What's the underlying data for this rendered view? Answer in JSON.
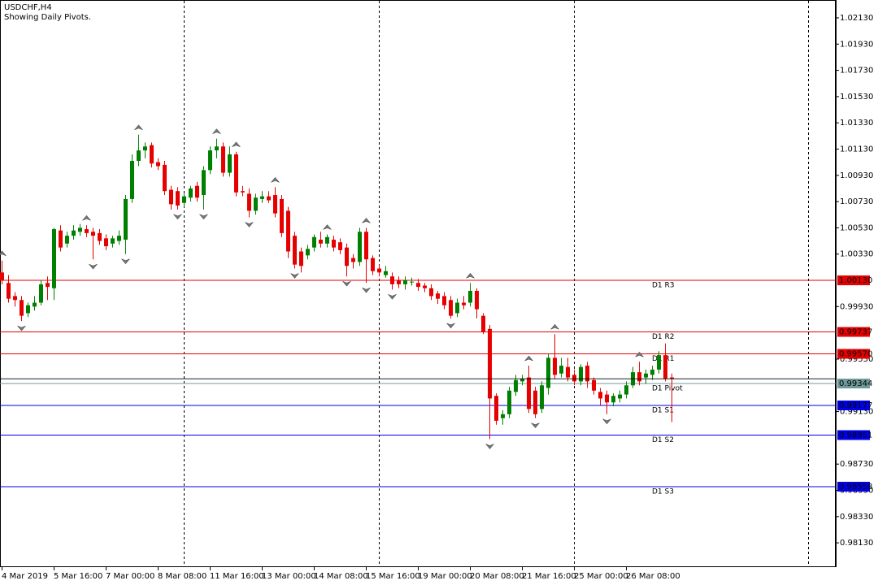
{
  "chart_data": {
    "type": "candlestick",
    "title": "USDCHF,H4",
    "subtitle": "Showing Daily Pivots.",
    "categories": [
      "4 Mar 2019",
      null,
      null,
      null,
      null,
      null,
      null,
      null,
      "5 Mar 16:00",
      null,
      null,
      null,
      null,
      null,
      null,
      null,
      "7 Mar 00:00",
      null,
      null,
      null,
      null,
      null,
      null,
      null,
      "8 Mar 08:00",
      null,
      null,
      null,
      null,
      null,
      null,
      null,
      "11 Mar 16:00",
      null,
      null,
      null,
      null,
      null,
      null,
      null,
      "13 Mar 00:00",
      null,
      null,
      null,
      null,
      null,
      null,
      null,
      "14 Mar 08:00",
      null,
      null,
      null,
      null,
      null,
      null,
      null,
      "15 Mar 16:00",
      null,
      null,
      null,
      null,
      null,
      null,
      null,
      "19 Mar 00:00",
      null,
      null,
      null,
      null,
      null,
      null,
      null,
      "20 Mar 08:00",
      null,
      null,
      null,
      null,
      null,
      null,
      null,
      "21 Mar 16:00",
      null,
      null,
      null,
      null,
      null,
      null,
      null,
      "25 Mar 00:00",
      null,
      null,
      null,
      null,
      null,
      null,
      null,
      "26 Mar 08:00",
      null,
      null,
      null,
      null,
      null,
      null,
      null
    ],
    "open": [
      1.0019,
      1.0011,
      1.0001,
      0.9998,
      0.9988,
      0.9993,
      0.9996,
      1.0011,
      1.0007,
      1.0051,
      1.0041,
      1.0047,
      1.005,
      1.0052,
      1.005,
      1.0049,
      1.0045,
      1.0041,
      1.0043,
      1.0044,
      1.0075,
      1.0104,
      1.0112,
      1.0116,
      1.0103,
      1.0101,
      1.0082,
      1.0081,
      1.0072,
      1.0076,
      1.0085,
      1.0078,
      1.0097,
      1.0112,
      1.0115,
      1.0095,
      1.0109,
      1.0081,
      1.0079,
      1.0066,
      1.0075,
      1.0077,
      1.0078,
      1.0075,
      1.0066,
      1.0047,
      1.0035,
      1.0032,
      1.0038,
      1.0044,
      1.0041,
      1.0044,
      1.0042,
      1.0038,
      1.003,
      1.0027,
      1.005,
      1.003,
      1.0022,
      1.0017,
      1.0016,
      1.0013,
      1.001,
      1.0012,
      1.0011,
      1.0009,
      1.0007,
      1.0003,
      1.0001,
      0.9998,
      0.9988,
      0.9996,
      0.9996,
      1.0005,
      0.9986,
      0.9976,
      0.9925,
      0.9908,
      0.9911,
      0.9928,
      0.9936,
      0.9939,
      0.9929,
      0.9915,
      0.9931,
      0.9954,
      0.9942,
      0.9947,
      0.9941,
      0.9936,
      0.9948,
      0.9937,
      0.9928,
      0.9926,
      0.992,
      0.9923,
      0.9926,
      0.9933,
      0.9943,
      0.9939,
      0.9941,
      0.9945,
      0.9956,
      0.9939
    ],
    "high": [
      1.0028,
      1.0017,
      1.0004,
      1.0001,
      0.9996,
      1.0001,
      1.0013,
      1.0016,
      1.0053,
      1.0055,
      1.005,
      1.0055,
      1.0056,
      1.0055,
      1.0053,
      1.0052,
      1.0048,
      1.0047,
      1.0051,
      1.0078,
      1.0109,
      1.0124,
      1.0118,
      1.0118,
      1.0106,
      1.0104,
      1.0085,
      1.0084,
      1.0079,
      1.0085,
      1.0088,
      1.01,
      1.0115,
      1.0121,
      1.0118,
      1.0115,
      1.0111,
      1.0085,
      1.0083,
      1.0079,
      1.0081,
      1.0081,
      1.0084,
      1.0078,
      1.0069,
      1.005,
      1.0038,
      1.004,
      1.0048,
      1.005,
      1.0048,
      1.0047,
      1.0045,
      1.0041,
      1.0033,
      1.0053,
      1.0053,
      1.0032,
      1.0025,
      1.0024,
      1.0019,
      1.0016,
      1.0016,
      1.0015,
      1.0014,
      1.0011,
      1.001,
      1.0005,
      1.0004,
      1.0001,
      0.9999,
      1.0001,
      1.0011,
      1.0007,
      0.9988,
      0.9979,
      0.9927,
      0.9914,
      0.9932,
      0.9941,
      0.9941,
      0.9948,
      0.9932,
      0.9936,
      0.9957,
      0.9972,
      0.9954,
      0.9954,
      0.9945,
      0.9949,
      0.9951,
      0.9939,
      0.9931,
      0.9929,
      0.9927,
      0.9929,
      0.9936,
      0.9947,
      0.9951,
      0.9945,
      0.9948,
      0.9959,
      0.9965,
      0.9942
    ],
    "low": [
      1.001,
      0.9996,
      0.9993,
      0.9982,
      0.9985,
      0.999,
      0.9994,
      0.9998,
      0.9998,
      1.0035,
      1.0038,
      1.0044,
      1.0047,
      1.0046,
      1.0029,
      1.004,
      1.0036,
      1.0038,
      1.004,
      1.0033,
      1.0072,
      1.01,
      1.0106,
      1.0099,
      1.0097,
      1.0078,
      1.0067,
      1.0067,
      1.0069,
      1.0073,
      1.0073,
      1.0067,
      1.0094,
      1.0106,
      1.0092,
      1.0092,
      1.0077,
      1.0077,
      1.0061,
      1.0063,
      1.0072,
      1.0072,
      1.0061,
      1.0046,
      1.003,
      1.0022,
      1.0019,
      1.0029,
      1.0035,
      1.0038,
      1.0038,
      1.0035,
      1.0033,
      1.0016,
      1.0022,
      1.0024,
      1.0011,
      1.0017,
      1.0016,
      1.0015,
      1.0006,
      1.0007,
      1.0006,
      1.0009,
      1.0005,
      1.0004,
      0.9998,
      0.9995,
      0.9991,
      0.9984,
      0.9985,
      0.9991,
      0.9993,
      0.9984,
      0.9972,
      0.9892,
      0.9903,
      0.9903,
      0.9908,
      0.9925,
      0.9933,
      0.9912,
      0.9908,
      0.9912,
      0.9926,
      0.9938,
      0.9939,
      0.9936,
      0.9933,
      0.9933,
      0.9931,
      0.9926,
      0.9918,
      0.9911,
      0.9917,
      0.992,
      0.9923,
      0.9931,
      0.9933,
      0.9934,
      0.9937,
      0.9942,
      0.9936,
      0.9905
    ],
    "close": [
      1.0013,
      0.9999,
      0.9998,
      0.9986,
      0.9994,
      0.9996,
      1.001,
      1.0008,
      1.0052,
      1.0038,
      1.0047,
      1.0051,
      1.0053,
      1.0049,
      1.0047,
      1.0043,
      1.0039,
      1.0045,
      1.0047,
      1.0075,
      1.0104,
      1.0112,
      1.0115,
      1.0102,
      1.01,
      1.0081,
      1.0071,
      1.007,
      1.0077,
      1.0083,
      1.0076,
      1.0097,
      1.0112,
      1.0115,
      1.0095,
      1.0109,
      1.008,
      1.008,
      1.0066,
      1.0076,
      1.0077,
      1.0074,
      1.0064,
      1.0049,
      1.0035,
      1.0025,
      1.0024,
      1.0037,
      1.0046,
      1.0041,
      1.0046,
      1.0038,
      1.0036,
      1.0024,
      1.0027,
      1.005,
      1.0029,
      1.002,
      1.0019,
      1.002,
      1.001,
      1.001,
      1.0013,
      1.0012,
      1.0008,
      1.0007,
      1.0001,
      0.9999,
      0.9994,
      0.9986,
      0.9996,
      0.9994,
      1.0005,
      0.9991,
      0.9974,
      0.9923,
      0.9906,
      0.9911,
      0.9929,
      0.9937,
      0.9938,
      0.9915,
      0.9911,
      0.9933,
      0.9954,
      0.9941,
      0.9948,
      0.9939,
      0.9936,
      0.9947,
      0.9936,
      0.9929,
      0.9923,
      0.992,
      0.9925,
      0.9926,
      0.9933,
      0.9943,
      0.9936,
      0.9942,
      0.9945,
      0.9956,
      0.9938,
      0.9938
    ],
    "fractals_up": [
      1.0028,
      null,
      null,
      null,
      null,
      null,
      null,
      null,
      null,
      null,
      null,
      null,
      null,
      1.0055,
      null,
      null,
      null,
      null,
      null,
      null,
      null,
      1.0124,
      null,
      null,
      null,
      null,
      null,
      null,
      null,
      null,
      null,
      null,
      null,
      1.0121,
      null,
      null,
      1.0111,
      null,
      null,
      null,
      null,
      null,
      1.0084,
      null,
      null,
      null,
      null,
      null,
      null,
      null,
      1.0048,
      null,
      null,
      null,
      null,
      null,
      1.0053,
      null,
      null,
      null,
      null,
      null,
      null,
      null,
      null,
      null,
      null,
      null,
      null,
      null,
      null,
      null,
      1.0011,
      null,
      null,
      null,
      null,
      null,
      null,
      null,
      null,
      0.9948,
      null,
      null,
      null,
      0.9972,
      null,
      null,
      null,
      null,
      null,
      null,
      null,
      null,
      null,
      null,
      null,
      null,
      0.9951,
      null,
      null,
      null,
      null,
      null
    ],
    "fractals_down": [
      null,
      null,
      null,
      0.9982,
      null,
      null,
      null,
      null,
      null,
      null,
      null,
      null,
      null,
      null,
      1.0029,
      null,
      null,
      null,
      null,
      1.0033,
      null,
      null,
      null,
      null,
      null,
      null,
      null,
      1.0067,
      null,
      null,
      null,
      1.0067,
      null,
      null,
      null,
      null,
      null,
      null,
      1.0061,
      null,
      null,
      null,
      null,
      null,
      null,
      1.0022,
      null,
      null,
      null,
      null,
      null,
      null,
      null,
      1.0016,
      null,
      null,
      1.0011,
      null,
      null,
      null,
      1.0006,
      null,
      null,
      null,
      null,
      null,
      null,
      null,
      null,
      0.9984,
      null,
      null,
      null,
      null,
      null,
      0.9892,
      null,
      null,
      null,
      null,
      null,
      null,
      0.9908,
      null,
      null,
      null,
      null,
      null,
      null,
      null,
      null,
      null,
      null,
      0.9911,
      null,
      null,
      null,
      null,
      null,
      null,
      null,
      null,
      null,
      null
    ],
    "up_color": "#008000",
    "down_color": "#e60000",
    "pivots": {
      "names": [
        "D1 R3",
        "D1 R2",
        "D1 R1",
        "D1 Pivot",
        "D1 S1",
        "D1 S2",
        "D1 S3"
      ],
      "values": [
        1.0013,
        0.99737,
        0.9957,
        0.99344,
        0.99177,
        0.98951,
        0.98558
      ],
      "value_labels": [
        "1.00130",
        "0.99737",
        "0.99570",
        "0.99344",
        "0.99177",
        "0.98951",
        "0.98558"
      ],
      "colors": [
        "#e60000",
        "#e60000",
        "#e60000",
        "#6f9a9a",
        "#0000e6",
        "#0000e6",
        "#0000e6"
      ]
    },
    "ylim": [
      0.97945,
      1.02266
    ],
    "yticks": [
      {
        "value": 1.0213,
        "label": "1.02130"
      },
      {
        "value": 1.0193,
        "label": "1.01930"
      },
      {
        "value": 1.0173,
        "label": "1.01730"
      },
      {
        "value": 1.0153,
        "label": "1.01530"
      },
      {
        "value": 1.0133,
        "label": "1.01330"
      },
      {
        "value": 1.0113,
        "label": "1.01130"
      },
      {
        "value": 1.0093,
        "label": "1.00930"
      },
      {
        "value": 1.0073,
        "label": "1.00730"
      },
      {
        "value": 1.0053,
        "label": "1.00530"
      },
      {
        "value": 1.0033,
        "label": "1.00330"
      },
      {
        "value": 0.9993,
        "label": "0.99930"
      },
      {
        "value": 0.9953,
        "label": "0.99530"
      },
      {
        "value": 0.9913,
        "label": "0.99130"
      },
      {
        "value": 0.9873,
        "label": "0.98730"
      },
      {
        "value": 0.9853,
        "label": "0.98530"
      },
      {
        "value": 0.9833,
        "label": "0.98330"
      },
      {
        "value": 0.9813,
        "label": "0.98130"
      }
    ],
    "grid": false
  }
}
